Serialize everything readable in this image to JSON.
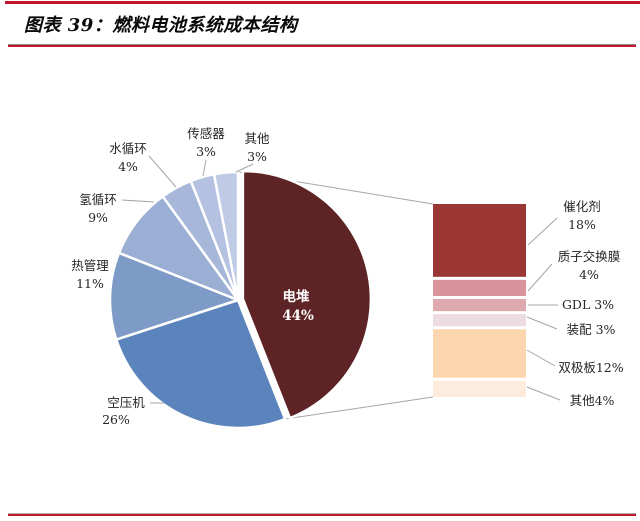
{
  "header": {
    "title": "图表 39：燃料电池系统成本结构"
  },
  "styles": {
    "accent_line_color": "#C5162B",
    "leader_line_color": "#A6A6A6",
    "label_color": "#262626",
    "inside_label_color": "#FFFFFF",
    "slice_border_color": "#FFFFFF"
  },
  "chart_data": {
    "type": "pie",
    "subtype": "bar-of-pie",
    "title": "燃料电池系统成本结构",
    "unit": "%",
    "legend_position": "none",
    "grid": false,
    "pie": {
      "start_angle_deg": 0,
      "direction": "clockwise",
      "slices": [
        {
          "label": "电堆",
          "value": 44,
          "color": "#5E2425",
          "label_inside": true
        },
        {
          "label": "空压机",
          "value": 26,
          "color": "#5C84BC"
        },
        {
          "label": "热管理",
          "value": 11,
          "color": "#7E9AC6"
        },
        {
          "label": "氢循环",
          "value": 9,
          "color": "#9BAED4"
        },
        {
          "label": "水循环",
          "value": 4,
          "color": "#A7B7DA"
        },
        {
          "label": "传感器",
          "value": 3,
          "color": "#B4C1E0"
        },
        {
          "label": "其他",
          "value": 3,
          "color": "#BFCAE4"
        }
      ]
    },
    "bar": {
      "parent_slice": "电堆",
      "segments": [
        {
          "label": "催化剂",
          "value": 18,
          "color": "#9A3634"
        },
        {
          "label": "质子交换膜",
          "value": 4,
          "color": "#D9949B"
        },
        {
          "label": "GDL",
          "value": 3,
          "color": "#DFA9B0"
        },
        {
          "label": "装配",
          "value": 3,
          "color": "#ECDCE1"
        },
        {
          "label": "双极板",
          "value": 12,
          "color": "#FBD6AF"
        },
        {
          "label": "其他",
          "value": 4,
          "color": "#FDECDE"
        }
      ]
    }
  }
}
